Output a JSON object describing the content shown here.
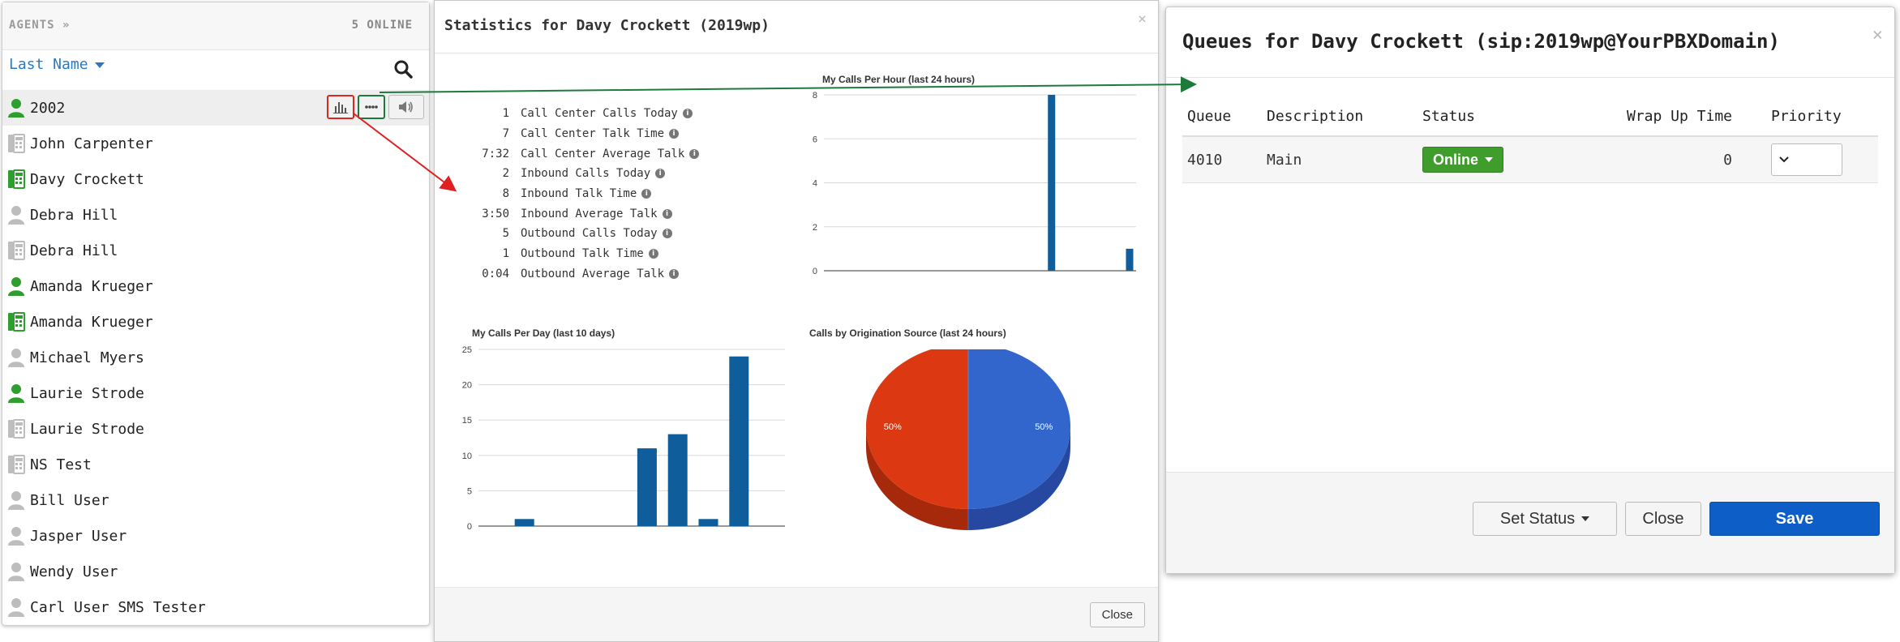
{
  "agents": {
    "title": "AGENTS",
    "title_icon": "»",
    "online": "5 ONLINE",
    "sort_label": "Last Name",
    "items": [
      {
        "name": "2002",
        "icon": "user-green"
      },
      {
        "name": "John Carpenter",
        "icon": "phone-gray"
      },
      {
        "name": "Davy Crockett",
        "icon": "phone-green"
      },
      {
        "name": "Debra Hill",
        "icon": "user-gray"
      },
      {
        "name": "Debra Hill",
        "icon": "phone-gray"
      },
      {
        "name": "Amanda Krueger",
        "icon": "user-green"
      },
      {
        "name": "Amanda Krueger",
        "icon": "phone-green"
      },
      {
        "name": "Michael Myers",
        "icon": "user-gray"
      },
      {
        "name": "Laurie Strode",
        "icon": "user-green"
      },
      {
        "name": "Laurie Strode",
        "icon": "phone-gray"
      },
      {
        "name": "NS Test",
        "icon": "phone-gray"
      },
      {
        "name": "Bill User",
        "icon": "user-gray"
      },
      {
        "name": "Jasper User",
        "icon": "user-gray"
      },
      {
        "name": "Wendy User",
        "icon": "user-gray"
      },
      {
        "name": "Carl User SMS Tester",
        "icon": "user-gray"
      }
    ],
    "colors": {
      "online": "#2e9e2e",
      "offline": "#bdbdbd"
    }
  },
  "stats": {
    "title": "Statistics for Davy Crockett (2019wp)",
    "close_x": "×",
    "close_label": "Close",
    "info_glyph": "i",
    "rows": [
      {
        "value": "1",
        "label": "Call Center Calls Today"
      },
      {
        "value": "7",
        "label": "Call Center Talk Time"
      },
      {
        "value": "7:32",
        "label": "Call Center Average Talk"
      },
      {
        "value": "2",
        "label": "Inbound Calls Today"
      },
      {
        "value": "8",
        "label": "Inbound Talk Time"
      },
      {
        "value": "3:50",
        "label": "Inbound Average Talk"
      },
      {
        "value": "5",
        "label": "Outbound Calls Today"
      },
      {
        "value": "1",
        "label": "Outbound Talk Time"
      },
      {
        "value": "0:04",
        "label": "Outbound Average Talk"
      }
    ]
  },
  "chart_data": [
    {
      "type": "bar",
      "title": "My Calls Per Hour (last 24 hours)",
      "values": [
        0,
        0,
        0,
        0,
        0,
        0,
        0,
        0,
        0,
        0,
        0,
        0,
        0,
        0,
        0,
        0,
        0,
        8,
        0,
        0,
        0,
        0,
        0,
        1
      ],
      "yticks": [
        0,
        2,
        4,
        6,
        8
      ],
      "ylim": [
        0,
        8
      ],
      "grid": true,
      "color": "#0f5d9a"
    },
    {
      "type": "bar",
      "title": "My Calls Per Day (last 10 days)",
      "values": [
        0,
        1,
        0,
        0,
        0,
        11,
        13,
        1,
        24,
        0
      ],
      "yticks": [
        0,
        5,
        10,
        15,
        20,
        25
      ],
      "ylim": [
        0,
        25
      ],
      "grid": true,
      "color": "#0f5d9a"
    },
    {
      "type": "pie",
      "title": "Calls by Origination Source (last 24 hours)",
      "slices": [
        {
          "label": "50%",
          "value": 50,
          "color": "#3366cc",
          "side_color": "#2748a0"
        },
        {
          "label": "50%",
          "value": 50,
          "color": "#dc3912",
          "side_color": "#a6290c"
        }
      ]
    }
  ],
  "queues": {
    "title": "Queues for Davy Crockett (sip:2019wp@YourPBXDomain)",
    "close_x": "×",
    "columns": [
      "Queue",
      "Description",
      "Status",
      "Wrap Up Time",
      "Priority"
    ],
    "rows": [
      {
        "queue": "4010",
        "description": "Main",
        "status": "Online",
        "wrap_up": "0",
        "priority": ""
      }
    ],
    "buttons": {
      "set_status": "Set Status",
      "close": "Close",
      "save": "Save"
    },
    "colors": {
      "online": "#3e9d2b",
      "save": "#0d5fc7"
    }
  },
  "annotations": {
    "red_arrow": "#e02020",
    "green_arrow": "#1e7a3b"
  }
}
